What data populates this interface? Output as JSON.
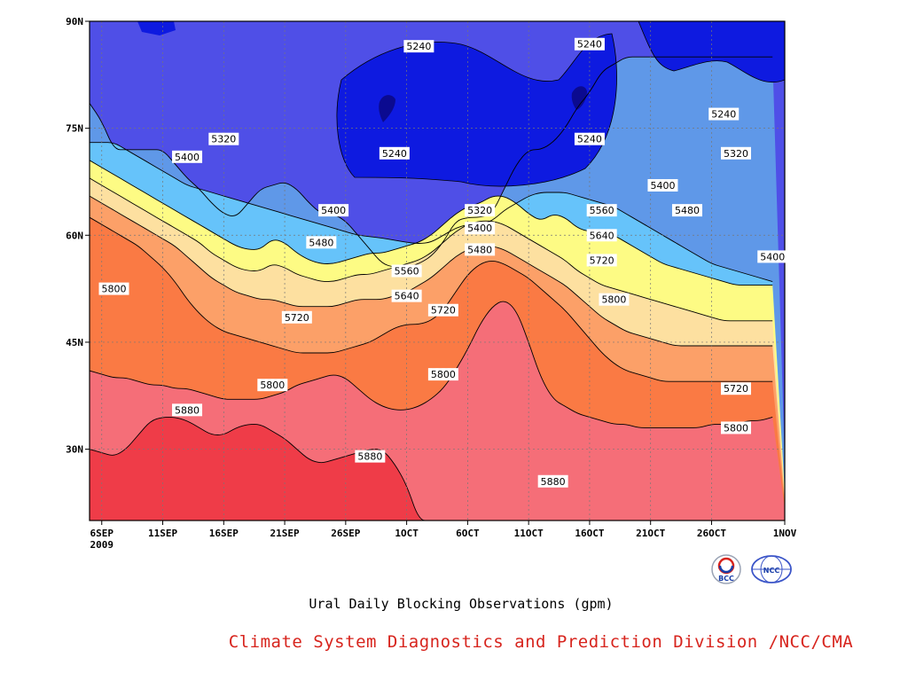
{
  "colors": {
    "levels": [
      "#4f4fe7",
      "#5f98e8",
      "#66c3fa",
      "#fdfb84",
      "#fde0a0",
      "#fca068",
      "#fa7a44",
      "#f56e78",
      "#ef3c48"
    ],
    "deep": [
      "#0e1ae0",
      "#0b0a90",
      "#1b2aa8"
    ],
    "credit": "#d7241d"
  },
  "chart_data": {
    "type": "heatmap",
    "title": "",
    "xlabel": "",
    "ylabel": "",
    "y_ticks": [
      "90N",
      "75N",
      "60N",
      "45N",
      "30N"
    ],
    "y_tick_values": [
      90,
      75,
      60,
      45,
      30
    ],
    "ylim": [
      20,
      90
    ],
    "x_ticks": [
      "6SEP",
      "11SEP",
      "16SEP",
      "21SEP",
      "26SEP",
      "1OCT",
      "6OCT",
      "11OCT",
      "16OCT",
      "21OCT",
      "26OCT",
      "1NOV"
    ],
    "x_tick_values": [
      "2009-09-06",
      "2009-09-11",
      "2009-09-16",
      "2009-09-21",
      "2009-09-26",
      "2009-10-01",
      "2009-10-06",
      "2009-10-11",
      "2009-10-16",
      "2009-10-21",
      "2009-10-26",
      "2009-11-01"
    ],
    "x_year_label": "2009",
    "xlim": [
      "2009-09-05",
      "2009-11-01"
    ],
    "contour_levels": [
      5240,
      5320,
      5400,
      5480,
      5560,
      5640,
      5720,
      5800,
      5880
    ],
    "level_boundaries": [
      {
        "value": 5320,
        "lat": [
          78.5,
          76,
          72,
          72,
          72,
          72,
          72,
          70,
          68,
          66.5,
          64.5,
          63,
          62.5,
          64.5,
          66.5,
          67,
          67.5,
          66.5,
          64.5,
          63,
          63,
          62,
          60,
          58,
          56,
          55.5,
          55.5,
          56,
          57,
          59,
          62,
          62.5,
          62.5,
          63,
          66.5,
          70,
          72,
          72,
          73,
          75,
          78,
          80,
          83,
          84,
          85,
          85,
          85,
          85,
          85,
          85,
          85,
          85,
          85,
          85,
          85,
          85,
          85
        ]
      },
      {
        "value": 5400,
        "lat": [
          73,
          73,
          73,
          72,
          71,
          70,
          69,
          68,
          67,
          66.5,
          66,
          65.5,
          65,
          64.5,
          64,
          63.5,
          63,
          62.5,
          62,
          61.5,
          61,
          60.5,
          60,
          59.8,
          59.6,
          59.3,
          59,
          58.8,
          59,
          60,
          61,
          61.5,
          61.5,
          62,
          63.5,
          64.5,
          65.5,
          66,
          66,
          66,
          65.5,
          65,
          64.5,
          64,
          63,
          62,
          61,
          60,
          59,
          58,
          57,
          56,
          55.5,
          55,
          54.5,
          54,
          53.5
        ]
      },
      {
        "value": 5480,
        "lat": [
          70.5,
          69.5,
          68.5,
          67.5,
          66.5,
          65.5,
          64.5,
          63.5,
          62.5,
          61.5,
          60.5,
          59.5,
          58.5,
          58,
          58,
          59.5,
          59,
          57.5,
          56.5,
          56,
          56,
          56.5,
          57,
          57.5,
          57.5,
          58,
          58.5,
          59,
          60,
          61.5,
          63,
          64,
          64.5,
          65.5,
          65.5,
          64.5,
          63,
          62,
          63,
          62.5,
          61,
          60.5,
          60.5,
          60,
          59,
          58,
          57,
          56,
          55.5,
          55,
          54.5,
          54,
          53.5,
          53,
          53,
          53,
          53
        ]
      },
      {
        "value": 5560,
        "lat": [
          68,
          67,
          66,
          65,
          64,
          63,
          62,
          61,
          60,
          59,
          57.5,
          56.5,
          55.5,
          55,
          55,
          56,
          55.5,
          54.5,
          54,
          53.5,
          53.5,
          54,
          54.5,
          54.5,
          55,
          55.5,
          56,
          56.5,
          57.5,
          59,
          60.5,
          61.5,
          62,
          62,
          61.5,
          60.5,
          59.5,
          58.5,
          57.5,
          56.5,
          55,
          54,
          53,
          52.5,
          52,
          51.5,
          51,
          50.5,
          50,
          49.5,
          49,
          48.5,
          48,
          48,
          48,
          48,
          48
        ]
      },
      {
        "value": 5640,
        "lat": [
          65.5,
          64.5,
          63.5,
          62.5,
          61.5,
          60.5,
          59.5,
          58.5,
          57,
          55.5,
          54,
          53,
          52,
          51.5,
          51,
          51,
          50.5,
          50,
          50,
          50,
          50,
          50.5,
          51,
          51,
          51,
          51.5,
          52,
          53,
          54,
          55.5,
          57,
          58,
          58.5,
          58.5,
          58,
          57,
          56,
          55,
          54,
          53,
          51.5,
          50,
          48.5,
          47.5,
          46.5,
          46,
          45.5,
          45,
          44.5,
          44.5,
          44.5,
          44.5,
          44.5,
          44.5,
          44.5,
          44.5,
          44.5
        ]
      },
      {
        "value": 5720,
        "lat": [
          62.5,
          61.5,
          60.5,
          59.5,
          58.5,
          57,
          55.5,
          53.5,
          51,
          49,
          47.5,
          46.5,
          46,
          45.5,
          45,
          44.5,
          44,
          43.5,
          43.5,
          43.5,
          43.5,
          44,
          44.5,
          45,
          46,
          47,
          47.5,
          47.5,
          48,
          49.5,
          52,
          54.5,
          56,
          56.5,
          56,
          55,
          54,
          52.5,
          51,
          49.5,
          47.5,
          45.5,
          43.5,
          42,
          41,
          40.5,
          40,
          39.5,
          39.5,
          39.5,
          39.5,
          39.5,
          39.5,
          39.5,
          39.5,
          39.5,
          39.5
        ]
      },
      {
        "value": 5800,
        "lat": [
          41,
          40.5,
          40,
          40,
          39.5,
          39,
          39,
          38.5,
          38.5,
          38,
          37.5,
          37,
          37,
          37,
          37,
          37.5,
          38,
          39,
          39.5,
          40,
          40.5,
          40,
          38.5,
          37,
          36,
          35.5,
          35.5,
          36,
          37,
          38.5,
          41,
          44,
          47.5,
          50,
          51,
          49.5,
          45,
          40,
          37,
          36,
          35,
          34.5,
          34,
          33.5,
          33.5,
          33,
          33,
          33,
          33,
          33,
          33,
          33.5,
          33.5,
          33.5,
          34,
          34,
          34.5
        ]
      },
      {
        "value": 5880,
        "lat": [
          30,
          29.5,
          29,
          30,
          32,
          34,
          34.5,
          34.5,
          34,
          33,
          32,
          32,
          33,
          33.5,
          33.5,
          32.5,
          31.5,
          30,
          28.5,
          28,
          28.5,
          29,
          29.5,
          30,
          30,
          28,
          25,
          20,
          20,
          20,
          20,
          20,
          20,
          20,
          20,
          20,
          20,
          20,
          20,
          20,
          20,
          20,
          20,
          20,
          20,
          20,
          20,
          20,
          20,
          20,
          20,
          20,
          20,
          20,
          20,
          20,
          20
        ]
      }
    ],
    "annotations": [
      {
        "text": "5240",
        "date": "2009-10-02",
        "lat": 86.5
      },
      {
        "text": "5240",
        "date": "2009-10-16",
        "lat": 86.8
      },
      {
        "text": "5240",
        "date": "2009-09-30",
        "lat": 71.5
      },
      {
        "text": "5240",
        "date": "2009-10-16",
        "lat": 73.5
      },
      {
        "text": "5240",
        "date": "2009-10-27",
        "lat": 77
      },
      {
        "text": "5320",
        "date": "2009-09-16",
        "lat": 73.5
      },
      {
        "text": "5320",
        "date": "2009-10-07",
        "lat": 63.5
      },
      {
        "text": "5320",
        "date": "2009-10-28",
        "lat": 71.5
      },
      {
        "text": "5400",
        "date": "2009-09-13",
        "lat": 71
      },
      {
        "text": "5400",
        "date": "2009-09-25",
        "lat": 63.5
      },
      {
        "text": "5400",
        "date": "2009-10-07",
        "lat": 61
      },
      {
        "text": "5400",
        "date": "2009-10-22",
        "lat": 67
      },
      {
        "text": "5400",
        "date": "2009-10-31",
        "lat": 57
      },
      {
        "text": "5480",
        "date": "2009-09-24",
        "lat": 59
      },
      {
        "text": "5480",
        "date": "2009-10-07",
        "lat": 58
      },
      {
        "text": "5480",
        "date": "2009-10-24",
        "lat": 63.5
      },
      {
        "text": "5560",
        "date": "2009-10-17",
        "lat": 63.5
      },
      {
        "text": "5560",
        "date": "2009-10-01",
        "lat": 55
      },
      {
        "text": "5640",
        "date": "2009-10-17",
        "lat": 60
      },
      {
        "text": "5640",
        "date": "2009-10-01",
        "lat": 51.5
      },
      {
        "text": "5720",
        "date": "2009-10-17",
        "lat": 56.5
      },
      {
        "text": "5720",
        "date": "2009-10-04",
        "lat": 49.5
      },
      {
        "text": "5720",
        "date": "2009-09-22",
        "lat": 48.5
      },
      {
        "text": "5720",
        "date": "2009-10-28",
        "lat": 38.5
      },
      {
        "text": "5800",
        "date": "2009-09-07",
        "lat": 52.5
      },
      {
        "text": "5800",
        "date": "2009-09-20",
        "lat": 39
      },
      {
        "text": "5800",
        "date": "2009-10-04",
        "lat": 40.5
      },
      {
        "text": "5800",
        "date": "2009-10-18",
        "lat": 51
      },
      {
        "text": "5800",
        "date": "2009-10-28",
        "lat": 33
      },
      {
        "text": "5880",
        "date": "2009-09-13",
        "lat": 35.5
      },
      {
        "text": "5880",
        "date": "2009-09-28",
        "lat": 29
      },
      {
        "text": "5880",
        "date": "2009-10-13",
        "lat": 25.5
      }
    ]
  },
  "caption": "Ural Daily Blocking Observations (gpm)",
  "credit": "Climate System Diagnostics and Prediction Division /NCC/CMA",
  "logos": {
    "bcc": "BCC",
    "ncc": "NCC"
  }
}
